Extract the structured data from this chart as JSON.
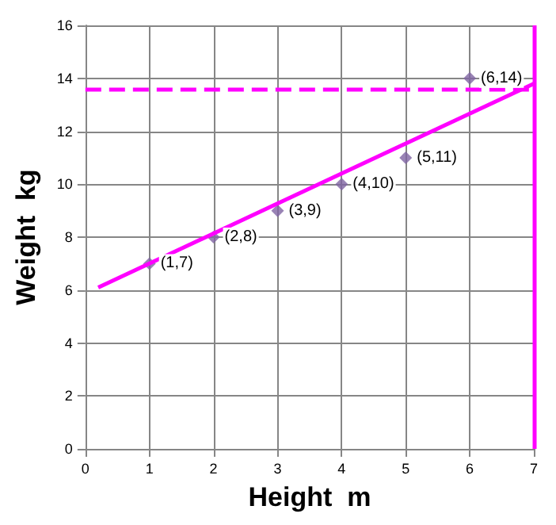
{
  "chart_data": {
    "type": "scatter",
    "xlabel": "Height  m",
    "ylabel": "Weight  kg",
    "xlim": [
      0,
      7
    ],
    "ylim": [
      0,
      16
    ],
    "xticks": [
      0,
      1,
      2,
      3,
      4,
      5,
      6,
      7
    ],
    "yticks": [
      0,
      2,
      4,
      6,
      8,
      10,
      12,
      14,
      16
    ],
    "grid": true,
    "marker": "diamond",
    "series": [
      {
        "color": "#8064a2",
        "x": [
          1,
          2,
          3,
          4,
          5,
          6
        ],
        "values": [
          7,
          8,
          9,
          10,
          11,
          14
        ]
      },
      {
        "type": "line",
        "color": "#ff00ff",
        "x": [
          0.2,
          7
        ],
        "values": [
          6.1,
          13.8
        ],
        "marker": "none",
        "line_style": "solid"
      }
    ],
    "annotations": [
      {
        "text": "(1,7)",
        "x": 1,
        "y": 7
      },
      {
        "text": "(2,8)",
        "x": 2,
        "y": 8
      },
      {
        "text": "(3,9)",
        "x": 3,
        "y": 9
      },
      {
        "text": "(4,10)",
        "x": 4,
        "y": 10
      },
      {
        "text": "(5,11)",
        "x": 5,
        "y": 11
      },
      {
        "text": "(6,14)",
        "x": 6,
        "y": 14
      }
    ],
    "ref_lines": [
      {
        "axis": "y",
        "value": 13.6,
        "label": null,
        "color": "#ff00ff",
        "line_style": "dashed"
      },
      {
        "axis": "x",
        "value": 7,
        "label": null,
        "color": "#ff00ff",
        "line_style": "solid"
      }
    ]
  }
}
